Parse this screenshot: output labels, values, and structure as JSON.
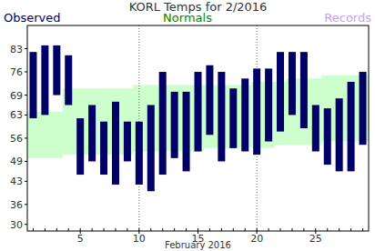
{
  "chart_data": {
    "type": "range_bar",
    "title": "KORL Temps for 2/2016",
    "xlabel": "February 2016",
    "x": [
      1,
      2,
      3,
      4,
      5,
      6,
      7,
      8,
      9,
      10,
      11,
      12,
      13,
      14,
      15,
      16,
      17,
      18,
      19,
      20,
      21,
      22,
      23,
      24,
      25,
      26,
      27,
      28,
      29
    ],
    "xlim": [
      0.5,
      29.5
    ],
    "xticks": [
      5,
      10,
      15,
      20,
      25
    ],
    "ylim": [
      28,
      90
    ],
    "yticks": [
      30,
      36,
      43,
      49,
      56,
      63,
      69,
      76,
      83
    ],
    "grid": true,
    "series": [
      {
        "name": "Observed",
        "type": "bar",
        "color": "#000066",
        "low": [
          62,
          63,
          69,
          66,
          45,
          49,
          45,
          42,
          49,
          42,
          40,
          45,
          50,
          46,
          52,
          57,
          49,
          53,
          52,
          51,
          55,
          58,
          63,
          59,
          52,
          48,
          46,
          46,
          54
        ],
        "high": [
          82,
          84,
          84,
          81,
          62,
          66,
          61,
          67,
          61,
          61,
          66,
          76,
          70,
          70,
          76,
          78,
          76,
          71,
          74,
          77,
          77,
          82,
          82,
          82,
          66,
          65,
          68,
          73,
          76
        ]
      },
      {
        "name": "Normals",
        "type": "area",
        "color": "#ccffcc",
        "low": [
          50,
          50,
          50,
          51,
          51,
          51,
          51,
          51,
          51,
          52,
          52,
          52,
          52,
          52,
          52,
          53,
          53,
          53,
          53,
          53,
          53,
          54,
          54,
          54,
          54,
          55,
          55,
          55,
          55
        ],
        "high": [
          64,
          64,
          64,
          71,
          71,
          71,
          71,
          71,
          71,
          72,
          72,
          72,
          72,
          72,
          72,
          72,
          72,
          72,
          72,
          73,
          73,
          73,
          74,
          74,
          74,
          75,
          75,
          75,
          75
        ]
      },
      {
        "name": "Records",
        "type": "bar",
        "color": "#cc99ff",
        "low": [
          null,
          null,
          null,
          null,
          null,
          null,
          null,
          null,
          null,
          null,
          null,
          null,
          null,
          null,
          null,
          null,
          null,
          null,
          null,
          null,
          null,
          null,
          null,
          null,
          null,
          null,
          null,
          null,
          null
        ],
        "high": [
          null,
          null,
          null,
          null,
          null,
          null,
          null,
          null,
          null,
          null,
          null,
          null,
          null,
          null,
          null,
          null,
          null,
          null,
          null,
          null,
          null,
          null,
          null,
          null,
          null,
          null,
          null,
          null,
          null
        ]
      }
    ]
  }
}
